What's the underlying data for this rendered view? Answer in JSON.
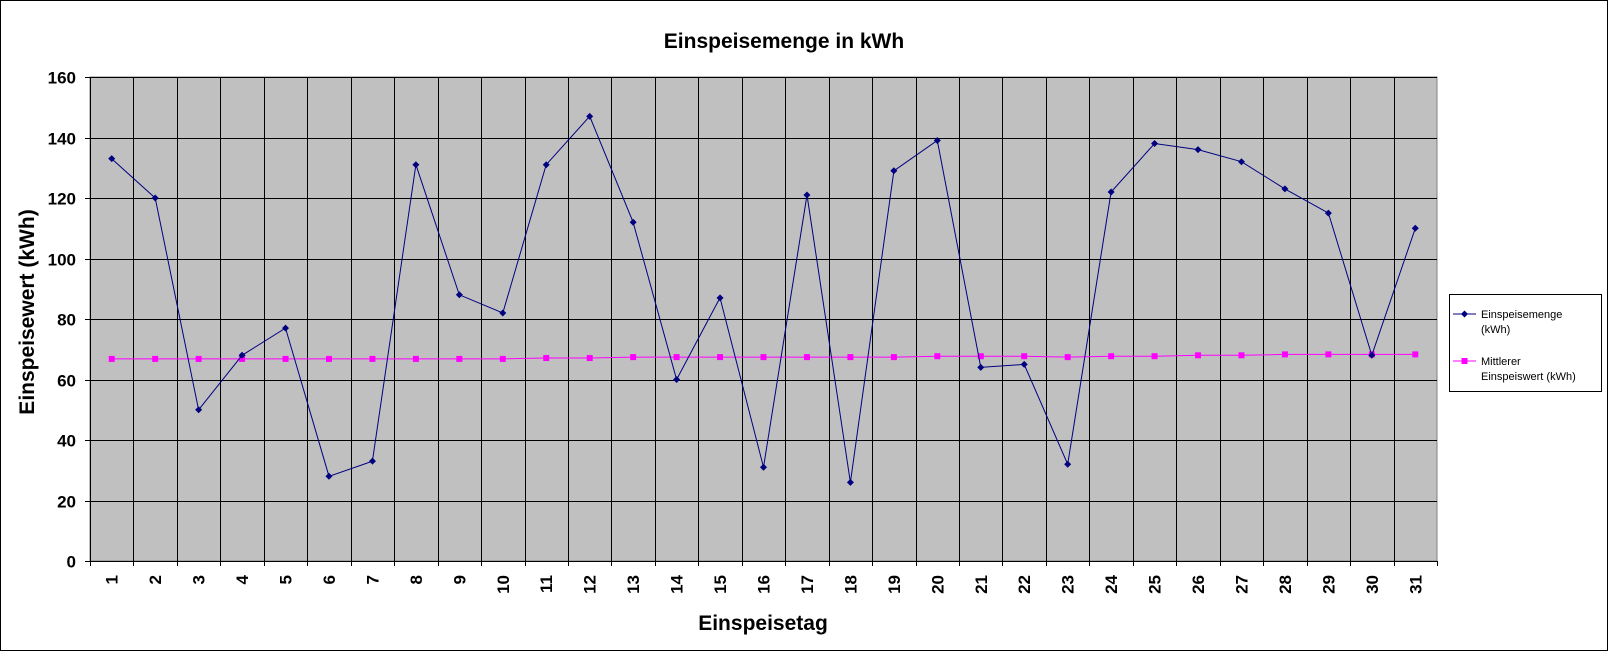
{
  "chart_data": {
    "type": "line",
    "title": "Einspeisemenge in kWh",
    "xlabel": "Einspeisetag",
    "ylabel": "Einspeisewert  (kWh)",
    "ylim": [
      0,
      160
    ],
    "y_ticks": [
      0,
      20,
      40,
      60,
      80,
      100,
      120,
      140,
      160
    ],
    "categories": [
      "1",
      "2",
      "3",
      "4",
      "5",
      "6",
      "7",
      "8",
      "9",
      "10",
      "11",
      "12",
      "13",
      "14",
      "15",
      "16",
      "17",
      "18",
      "19",
      "20",
      "21",
      "22",
      "23",
      "24",
      "25",
      "26",
      "27",
      "28",
      "29",
      "30",
      "31"
    ],
    "grid": true,
    "plot_background": "#c0c0c0",
    "legend_position": "right",
    "series": [
      {
        "name": "Einspeisemenge (kWh)",
        "legend_lines": [
          "Einspeisemenge",
          "(kWh)"
        ],
        "color": "#000080",
        "marker": "diamond",
        "values": [
          133,
          120,
          50,
          68,
          77,
          28,
          33,
          131,
          88,
          82,
          131,
          147,
          112,
          60,
          87,
          31,
          121,
          26,
          129,
          139,
          64,
          65,
          32,
          122,
          138,
          136,
          132,
          123,
          115,
          68,
          110
        ]
      },
      {
        "name": "Mittlerer Einspeiswert (kWh)",
        "legend_lines": [
          "Mittlerer",
          "Einspeiswert (kWh)"
        ],
        "color": "#ff00ff",
        "marker": "square",
        "values": [
          66.8,
          66.8,
          66.8,
          66.8,
          66.8,
          66.8,
          66.8,
          66.8,
          66.8,
          66.8,
          67.1,
          67.1,
          67.4,
          67.4,
          67.4,
          67.4,
          67.4,
          67.4,
          67.4,
          67.7,
          67.7,
          67.7,
          67.4,
          67.7,
          67.7,
          68.0,
          68.0,
          68.3,
          68.3,
          68.3,
          68.3
        ]
      }
    ]
  }
}
